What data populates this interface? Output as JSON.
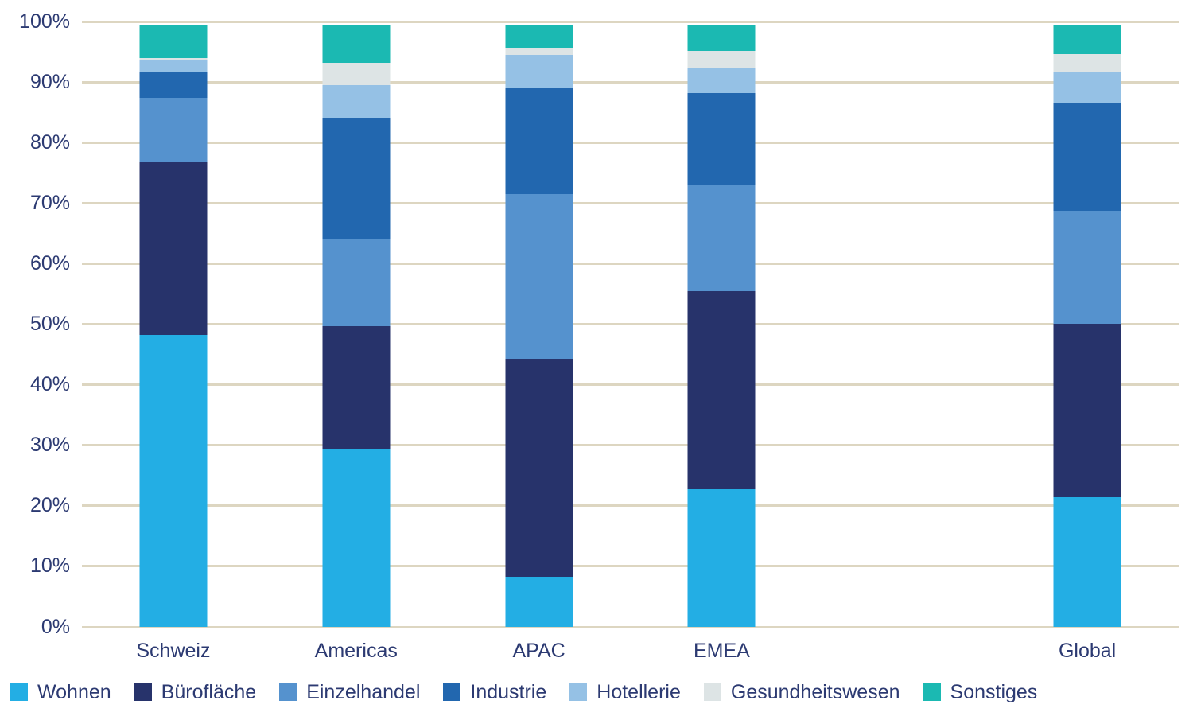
{
  "chart_data": {
    "type": "bar",
    "stacked": true,
    "value_unit": "%",
    "title": "",
    "xlabel": "",
    "ylabel": "",
    "categories": [
      "Schweiz",
      "Americas",
      "APAC",
      "EMEA",
      "Global"
    ],
    "series": [
      {
        "name": "Wohnen",
        "color": "#23AEE4",
        "values": [
          48.5,
          29.4,
          8.3,
          22.8,
          21.6
        ]
      },
      {
        "name": "Bürofläche",
        "color": "#27336B",
        "values": [
          28.7,
          20.6,
          36.2,
          33.0,
          28.7
        ]
      },
      {
        "name": "Einzelhandel",
        "color": "#5592CE",
        "values": [
          10.7,
          14.3,
          27.4,
          17.5,
          18.8
        ]
      },
      {
        "name": "Industrie",
        "color": "#2267AF",
        "values": [
          4.3,
          20.2,
          17.6,
          15.3,
          18.0
        ]
      },
      {
        "name": "Hotellerie",
        "color": "#95C1E5",
        "values": [
          1.8,
          5.5,
          5.5,
          4.3,
          5.0
        ]
      },
      {
        "name": "Gesundheitswesen",
        "color": "#DDE4E5",
        "values": [
          0.4,
          3.7,
          1.2,
          2.8,
          3.0
        ]
      },
      {
        "name": "Sonstiges",
        "color": "#1BB9B2",
        "values": [
          5.6,
          6.3,
          3.8,
          4.3,
          4.9
        ]
      }
    ],
    "y_axis": {
      "min": 0,
      "max": 100,
      "step": 10,
      "tick_labels": [
        "0%",
        "10%",
        "20%",
        "30%",
        "40%",
        "50%",
        "60%",
        "70%",
        "80%",
        "90%",
        "100%"
      ]
    },
    "legend": {
      "position": "bottom",
      "entries": [
        "Wohnen",
        "Bürofläche",
        "Einzelhandel",
        "Industrie",
        "Hotellerie",
        "Gesundheitswesen",
        "Sonstiges"
      ]
    },
    "layout": {
      "slots": 6,
      "category_slots": [
        0,
        1,
        2,
        3,
        5
      ],
      "grid": "horizontal"
    },
    "colors": {
      "background": "#FFFFFF",
      "gridline": "#DDD6C1",
      "axis_text": "#2C3A72",
      "legend_text": "#2C3A72"
    }
  }
}
